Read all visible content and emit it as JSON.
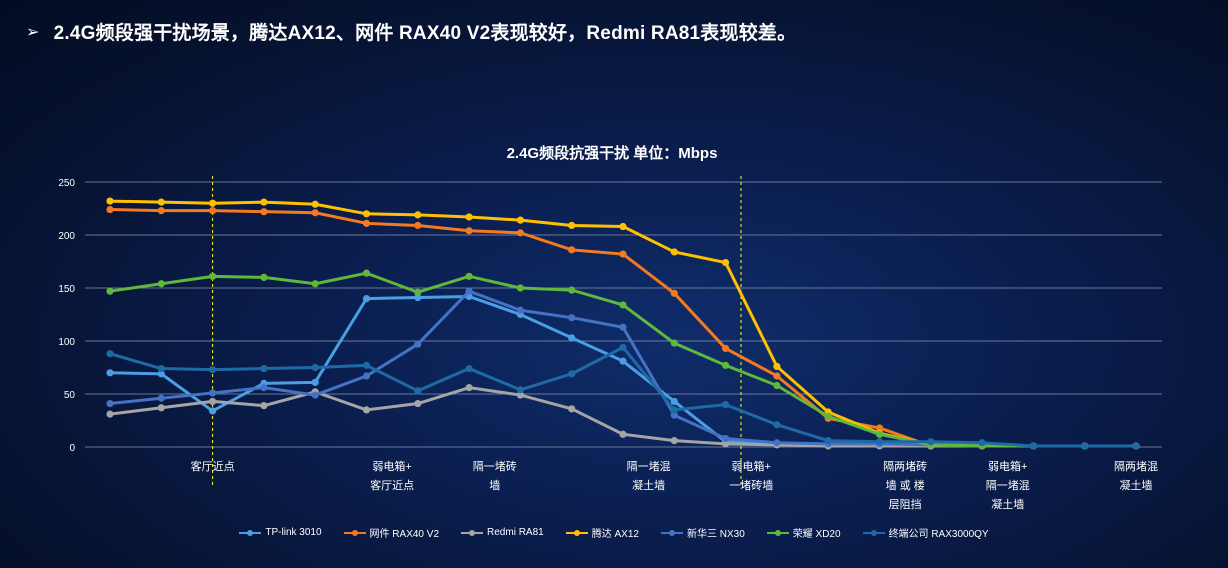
{
  "headline": {
    "arrow_icon": "arrow-right-icon",
    "text": "2.4G频段强干扰场景，腾达AX12、网件 RAX40 V2表现较好，Redmi RA81表现较差。"
  },
  "chart_data": {
    "type": "line",
    "title": "2.4G频段抗强干扰  单位：Mbps",
    "ylim": [
      0,
      250
    ],
    "yticks": [
      0,
      50,
      100,
      150,
      200,
      250
    ],
    "grid": true,
    "legend_position": "bottom",
    "x_points": 21,
    "category_labels": [
      {
        "index": 2,
        "lines": [
          "客厅近点"
        ]
      },
      {
        "index": 5.5,
        "lines": [
          "弱电箱+",
          "客厅近点"
        ]
      },
      {
        "index": 7.5,
        "lines": [
          "隔一堵砖",
          "墙"
        ]
      },
      {
        "index": 10.5,
        "lines": [
          "隔一堵混",
          "凝土墙"
        ]
      },
      {
        "index": 12.5,
        "lines": [
          "弱电箱+",
          "一堵砖墙"
        ]
      },
      {
        "index": 15.5,
        "lines": [
          "隔两堵砖",
          "墙 或 楼",
          "层阻挡"
        ]
      },
      {
        "index": 17.5,
        "lines": [
          "弱电箱+",
          "隔一堵混",
          "凝土墙"
        ]
      },
      {
        "index": 20,
        "lines": [
          "隔两堵混",
          "凝土墙"
        ]
      }
    ],
    "markers": [
      2,
      12.3
    ],
    "series": [
      {
        "name": "TP-link 3010",
        "color": "#4a9fe4",
        "values": [
          70,
          69,
          34,
          60,
          61,
          140,
          141,
          142,
          125,
          103,
          81,
          43,
          5,
          3,
          2,
          3,
          3,
          2,
          1,
          1,
          1
        ]
      },
      {
        "name": "网件 RAX40 V2",
        "color": "#f47921",
        "values": [
          224,
          223,
          223,
          222,
          221,
          211,
          209,
          204,
          202,
          186,
          182,
          145,
          93,
          67,
          27,
          18,
          1,
          1,
          1,
          1,
          1
        ]
      },
      {
        "name": "Redmi RA81",
        "color": "#a5a5a5",
        "values": [
          31,
          37,
          43,
          39,
          52,
          35,
          41,
          56,
          49,
          36,
          12,
          6,
          3,
          2,
          1,
          1,
          1,
          1,
          1,
          1,
          1
        ]
      },
      {
        "name": "腾达 AX12",
        "color": "#ffc000",
        "values": [
          232,
          231,
          230,
          231,
          229,
          220,
          219,
          217,
          214,
          209,
          208,
          184,
          174,
          76,
          33,
          13,
          2,
          1,
          1,
          1,
          1
        ]
      },
      {
        "name": "新华三 NX30",
        "color": "#4472c4",
        "values": [
          41,
          46,
          51,
          56,
          49,
          67,
          97,
          147,
          129,
          122,
          113,
          30,
          8,
          4,
          3,
          3,
          2,
          1,
          1,
          1,
          1
        ]
      },
      {
        "name": "荣耀 XD20",
        "color": "#5fb83c",
        "values": [
          147,
          154,
          161,
          160,
          154,
          164,
          146,
          161,
          150,
          148,
          134,
          98,
          77,
          58,
          29,
          12,
          2,
          1,
          1,
          1,
          1
        ]
      },
      {
        "name": "终端公司 RAX3000QY",
        "color": "#1f6aa5",
        "values": [
          88,
          74,
          73,
          74,
          75,
          77,
          53,
          74,
          54,
          69,
          94,
          35,
          40,
          21,
          6,
          5,
          5,
          4,
          1,
          1,
          1
        ]
      }
    ]
  }
}
